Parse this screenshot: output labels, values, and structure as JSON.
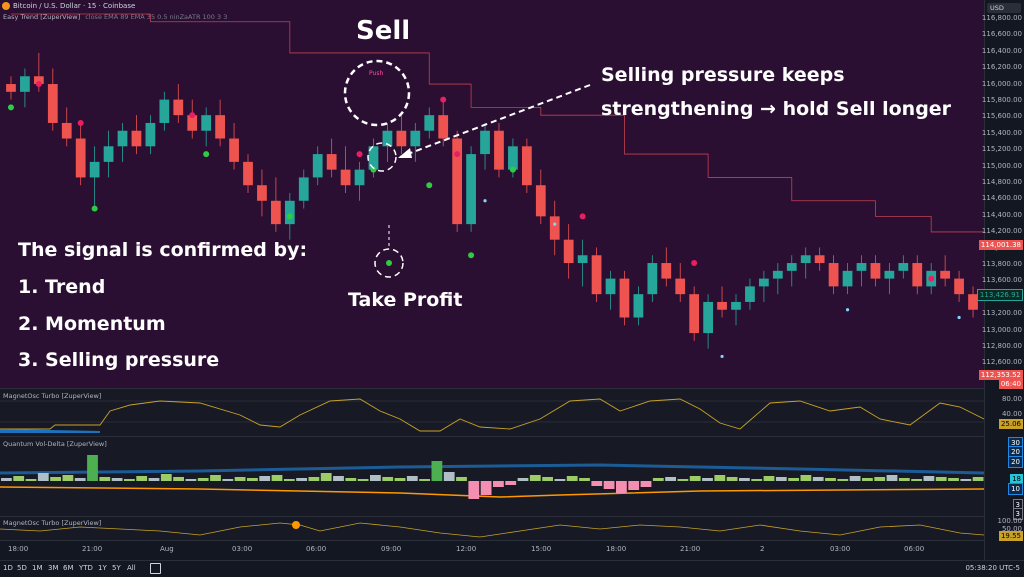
{
  "chart_header": {
    "symbol": "Bitcoin / U.S. Dollar · 15 · Coinbase",
    "indicator": "Easy Trend [ZuperView]",
    "indicator_params": "close EMA 89 EMA 35 0.5 ninZaATR 100 3 3"
  },
  "currency_button": "USD",
  "price_axis": {
    "ticks": [
      "116,800.00",
      "116,600.00",
      "116,400.00",
      "116,200.00",
      "116,000.00",
      "115,800.00",
      "115,600.00",
      "115,400.00",
      "115,200.00",
      "115,000.00",
      "114,800.00",
      "114,600.00",
      "114,400.00",
      "114,200.00",
      "114,000.00",
      "113,800.00",
      "113,600.00",
      "113,400.00",
      "113,200.00",
      "113,000.00",
      "112,800.00",
      "112,600.00"
    ],
    "badge_red": "114,001.38",
    "badge_green": "113,426.91",
    "badge_last": "112,353.52",
    "badge_last_time": "06:40"
  },
  "annotations": {
    "sell": "Sell",
    "push": "Push",
    "pressure_line1": "Selling pressure keeps",
    "pressure_line2": "strengthening → hold Sell longer",
    "take_profit": "Take Profit",
    "confirm_title": "The signal is confirmed by:",
    "confirm_items": [
      "1.  Trend",
      "2.  Momentum",
      "3.  Selling pressure"
    ]
  },
  "pane1": {
    "title": "MagnetOsc Turbo [ZuperView]",
    "ticks": [
      "80.00",
      "40.00"
    ],
    "badge": "25.06"
  },
  "pane2": {
    "title": "Quantum Vol-Delta [ZuperView]",
    "badges": [
      "30",
      "20",
      "20",
      "18",
      "10",
      "3",
      "3"
    ]
  },
  "pane3": {
    "title": "MagnetOsc Turbo [ZuperView]",
    "ticks": [
      "100.00",
      "50.00"
    ],
    "badge": "19.55"
  },
  "time_axis": [
    "18:00",
    "21:00",
    "Aug",
    "03:00",
    "06:00",
    "09:00",
    "12:00",
    "15:00",
    "18:00",
    "21:00",
    "2",
    "03:00",
    "06:00"
  ],
  "ranges": [
    "1D",
    "5D",
    "1M",
    "3M",
    "6M",
    "YTD",
    "1Y",
    "5Y",
    "All"
  ],
  "clock": "05:38:20 UTC-5",
  "colors": {
    "bg": "#2a0f32",
    "up": "#26a69a",
    "down": "#ef5350",
    "signal": "#e91e63",
    "dot_green": "#2ecc40"
  },
  "chart_data": {
    "type": "candlestick",
    "ylim": [
      112400,
      117000
    ],
    "candles": [
      [
        116100,
        116200,
        115900,
        116000
      ],
      [
        116000,
        116300,
        115800,
        116200
      ],
      [
        116200,
        116500,
        116000,
        116100
      ],
      [
        116100,
        116300,
        115500,
        115600
      ],
      [
        115600,
        115800,
        115300,
        115400
      ],
      [
        115400,
        115600,
        114800,
        114900
      ],
      [
        114900,
        115300,
        114500,
        115100
      ],
      [
        115100,
        115500,
        114900,
        115300
      ],
      [
        115300,
        115600,
        115100,
        115500
      ],
      [
        115500,
        115700,
        115200,
        115300
      ],
      [
        115300,
        115700,
        115200,
        115600
      ],
      [
        115600,
        116000,
        115500,
        115900
      ],
      [
        115900,
        116100,
        115600,
        115700
      ],
      [
        115700,
        115900,
        115400,
        115500
      ],
      [
        115500,
        115800,
        115300,
        115700
      ],
      [
        115700,
        115900,
        115300,
        115400
      ],
      [
        115400,
        115600,
        115000,
        115100
      ],
      [
        115100,
        115200,
        114700,
        114800
      ],
      [
        114800,
        115000,
        114400,
        114600
      ],
      [
        114600,
        114900,
        114200,
        114300
      ],
      [
        114300,
        114700,
        114100,
        114600
      ],
      [
        114600,
        115000,
        114500,
        114900
      ],
      [
        114900,
        115300,
        114800,
        115200
      ],
      [
        115200,
        115400,
        114900,
        115000
      ],
      [
        115000,
        115300,
        114700,
        114800
      ],
      [
        114800,
        115100,
        114600,
        115000
      ],
      [
        115000,
        115400,
        114900,
        115300
      ],
      [
        115300,
        115600,
        115100,
        115500
      ],
      [
        115500,
        115700,
        115200,
        115300
      ],
      [
        115300,
        115600,
        115100,
        115500
      ],
      [
        115500,
        115800,
        115400,
        115700
      ],
      [
        115700,
        115900,
        115300,
        115400
      ],
      [
        115400,
        115500,
        114200,
        114300
      ],
      [
        114300,
        115300,
        114200,
        115200
      ],
      [
        115200,
        115600,
        115000,
        115500
      ],
      [
        115500,
        115600,
        114900,
        115000
      ],
      [
        115000,
        115400,
        114900,
        115300
      ],
      [
        115300,
        115400,
        114700,
        114800
      ],
      [
        114800,
        115000,
        114300,
        114400
      ],
      [
        114400,
        114600,
        113900,
        114100
      ],
      [
        114100,
        114300,
        113600,
        113800
      ],
      [
        113800,
        114100,
        113500,
        113900
      ],
      [
        113900,
        114000,
        113300,
        113400
      ],
      [
        113400,
        113700,
        113200,
        113600
      ],
      [
        113600,
        113700,
        113000,
        113100
      ],
      [
        113100,
        113500,
        113000,
        113400
      ],
      [
        113400,
        113900,
        113300,
        113800
      ],
      [
        113800,
        114000,
        113500,
        113600
      ],
      [
        113600,
        113800,
        113300,
        113400
      ],
      [
        113400,
        113500,
        112800,
        112900
      ],
      [
        112900,
        113400,
        112700,
        113300
      ],
      [
        113300,
        113500,
        113100,
        113200
      ],
      [
        113200,
        113400,
        113000,
        113300
      ],
      [
        113300,
        113600,
        113200,
        113500
      ],
      [
        113500,
        113700,
        113300,
        113600
      ],
      [
        113600,
        113800,
        113400,
        113700
      ],
      [
        113700,
        113900,
        113500,
        113800
      ],
      [
        113800,
        114000,
        113600,
        113900
      ],
      [
        113900,
        114000,
        113700,
        113800
      ],
      [
        113800,
        113900,
        113400,
        113500
      ],
      [
        113500,
        113800,
        113400,
        113700
      ],
      [
        113700,
        113900,
        113500,
        113800
      ],
      [
        113800,
        113900,
        113500,
        113600
      ],
      [
        113600,
        113800,
        113400,
        113700
      ],
      [
        113700,
        113900,
        113600,
        113800
      ],
      [
        113800,
        113900,
        113400,
        113500
      ],
      [
        113500,
        113800,
        113400,
        113700
      ],
      [
        113700,
        113900,
        113500,
        113600
      ],
      [
        113600,
        113700,
        113300,
        113400
      ],
      [
        113400,
        113500,
        113100,
        113200
      ]
    ],
    "dots_green": [
      [
        0,
        115800
      ],
      [
        6,
        114500
      ],
      [
        14,
        115200
      ],
      [
        20,
        114400
      ],
      [
        26,
        115000
      ],
      [
        30,
        114800
      ],
      [
        33,
        113900
      ],
      [
        36,
        115000
      ]
    ],
    "dots_pink": [
      [
        2,
        116100
      ],
      [
        5,
        115600
      ],
      [
        13,
        115700
      ],
      [
        25,
        115200
      ],
      [
        31,
        115900
      ],
      [
        32,
        115200
      ],
      [
        41,
        114400
      ],
      [
        49,
        113800
      ],
      [
        66,
        113600
      ]
    ],
    "dots_blue": [
      [
        34,
        114600
      ],
      [
        39,
        114300
      ],
      [
        51,
        112600
      ],
      [
        60,
        113200
      ],
      [
        68,
        113100
      ]
    ],
    "trail": [
      [
        0,
        117000
      ],
      [
        10,
        116900
      ],
      [
        20,
        116500
      ],
      [
        30,
        116100
      ],
      [
        33,
        115800
      ],
      [
        38,
        115700
      ],
      [
        44,
        115200
      ],
      [
        50,
        114900
      ],
      [
        56,
        114600
      ],
      [
        62,
        114400
      ],
      [
        66,
        114200
      ],
      [
        70,
        114000
      ]
    ]
  }
}
